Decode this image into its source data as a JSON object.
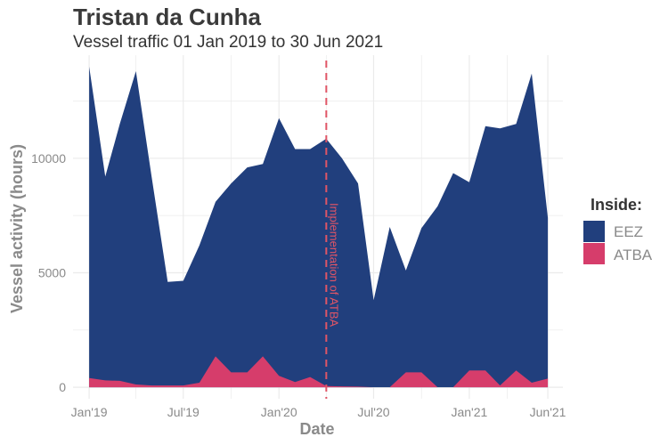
{
  "chart_data": {
    "type": "area",
    "title": "Tristan da Cunha",
    "subtitle": "Vessel traffic 01 Jan 2019 to 30 Jun 2021",
    "xlabel": "Date",
    "ylabel": "Vessel activity (hours)",
    "x_tick_labels": [
      "Jan'19",
      "Jul'19",
      "Jan'20",
      "Jul'20",
      "Jan'21",
      "Jun'21"
    ],
    "y_ticks": [
      0,
      5000,
      10000
    ],
    "ylim": [
      -500,
      14500
    ],
    "xlim": [
      "2018-12-01",
      "2021-06-30"
    ],
    "grid": true,
    "legend": {
      "title": "Inside:",
      "position": "right"
    },
    "x": [
      "2019-01-01",
      "2019-02-01",
      "2019-03-01",
      "2019-04-01",
      "2019-05-01",
      "2019-06-01",
      "2019-07-01",
      "2019-08-01",
      "2019-09-01",
      "2019-10-01",
      "2019-11-01",
      "2019-12-01",
      "2020-01-01",
      "2020-02-01",
      "2020-03-01",
      "2020-04-01",
      "2020-05-01",
      "2020-06-01",
      "2020-07-01",
      "2020-08-01",
      "2020-09-01",
      "2020-10-01",
      "2020-11-01",
      "2020-12-01",
      "2021-01-01",
      "2021-02-01",
      "2021-03-01",
      "2021-04-01",
      "2021-05-01",
      "2021-06-01"
    ],
    "series": [
      {
        "name": "EEZ",
        "color": "#213f7d",
        "values": [
          14000,
          9200,
          11500,
          13800,
          9200,
          4600,
          4650,
          6200,
          8100,
          8900,
          9600,
          9750,
          11750,
          10400,
          10400,
          10850,
          10000,
          8900,
          3800,
          7000,
          5100,
          6950,
          7900,
          9350,
          8950,
          11400,
          11300,
          11500,
          13700,
          7400
        ]
      },
      {
        "name": "ATBA",
        "color": "#d63d6b",
        "values": [
          400,
          300,
          280,
          120,
          80,
          80,
          80,
          200,
          1350,
          650,
          650,
          1350,
          500,
          230,
          450,
          50,
          40,
          30,
          0,
          0,
          650,
          650,
          0,
          0,
          730,
          730,
          80,
          730,
          200,
          380
        ]
      }
    ],
    "annotations": [
      {
        "x": "2020-04-01",
        "text": "Implementation of ATBA",
        "line_color": "#e05566"
      }
    ]
  }
}
